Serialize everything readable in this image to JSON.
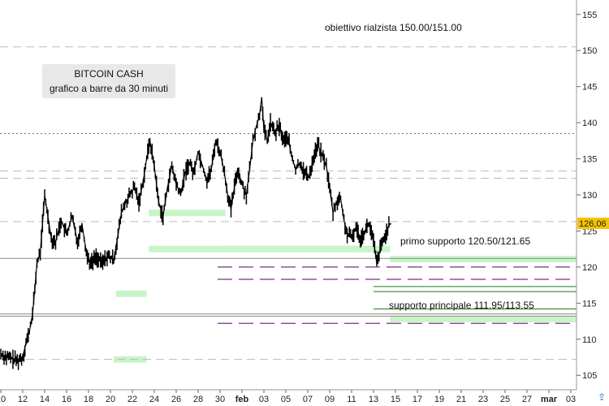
{
  "info_box": {
    "line1": "BITCOIN CASH",
    "line2": "grafico a barre da 30 minuti"
  },
  "annotations": {
    "target": "obiettivo rialzista 150.00/151.00",
    "first_support": "primo supporto 120.50/121.65",
    "main_support": "supporto principale 111.95/113.55"
  },
  "scroll_icon": "up-arrow-icon",
  "chart_data": {
    "type": "line",
    "title": "BITCOIN CASH",
    "subtitle": "grafico a barre da 30 minuti",
    "ylim": [
      103,
      157
    ],
    "y_ticks": [
      105,
      110,
      115,
      120,
      125,
      130,
      135,
      140,
      145,
      150,
      155
    ],
    "x_tick_labels": [
      "10",
      "12",
      "14",
      "16",
      "18",
      "20",
      "22",
      "24",
      "26",
      "28",
      "30",
      "feb",
      "03",
      "05",
      "07",
      "09",
      "11",
      "13",
      "15",
      "17",
      "19",
      "21",
      "23",
      "25",
      "27",
      "mar",
      "03"
    ],
    "x_tick_day_index": [
      0,
      2,
      4,
      6,
      8,
      10,
      12,
      14,
      16,
      18,
      20,
      22,
      24,
      26,
      28,
      30,
      32,
      34,
      36,
      38,
      40,
      42,
      44,
      46,
      48,
      50,
      52
    ],
    "x_tick_bold": [
      "feb",
      "mar"
    ],
    "last_price": "126,06",
    "last_price_value": 126.06,
    "last_price_color": "#f5c400",
    "price_color": "#000000",
    "series": [
      {
        "points": [
          [
            0,
            108.0
          ],
          [
            0.5,
            107.5
          ],
          [
            1,
            107.3
          ],
          [
            1.5,
            107.0
          ],
          [
            2,
            107.5
          ],
          [
            2.3,
            109.5
          ],
          [
            2.6,
            111.0
          ],
          [
            2.9,
            113.5
          ],
          [
            3.1,
            117.0
          ],
          [
            3.3,
            120.5
          ],
          [
            3.6,
            122.0
          ],
          [
            3.8,
            126.0
          ],
          [
            4.0,
            130.0
          ],
          [
            4.3,
            127.0
          ],
          [
            4.6,
            124.0
          ],
          [
            5.0,
            123.5
          ],
          [
            5.5,
            126.5
          ],
          [
            6.0,
            124.5
          ],
          [
            6.5,
            127.0
          ],
          [
            7.0,
            123.5
          ],
          [
            7.4,
            126.0
          ],
          [
            7.8,
            122.0
          ],
          [
            8.2,
            120.5
          ],
          [
            8.7,
            121.5
          ],
          [
            9.2,
            120.5
          ],
          [
            9.7,
            121.5
          ],
          [
            10.3,
            121.0
          ],
          [
            10.7,
            124.5
          ],
          [
            11.0,
            127.5
          ],
          [
            11.4,
            129.0
          ],
          [
            11.8,
            130.0
          ],
          [
            12.2,
            131.0
          ],
          [
            12.6,
            129.0
          ],
          [
            13.0,
            132.0
          ],
          [
            13.3,
            135.0
          ],
          [
            13.6,
            137.5
          ],
          [
            14.0,
            134.0
          ],
          [
            14.4,
            129.0
          ],
          [
            14.8,
            127.0
          ],
          [
            15.2,
            131.0
          ],
          [
            15.6,
            134.0
          ],
          [
            16.0,
            131.5
          ],
          [
            16.4,
            130.0
          ],
          [
            16.8,
            133.0
          ],
          [
            17.2,
            134.5
          ],
          [
            17.6,
            133.0
          ],
          [
            18.0,
            136.0
          ],
          [
            18.4,
            134.0
          ],
          [
            18.8,
            132.0
          ],
          [
            19.2,
            133.5
          ],
          [
            19.6,
            137.5
          ],
          [
            20.0,
            136.0
          ],
          [
            20.4,
            133.0
          ],
          [
            20.7,
            130.0
          ],
          [
            21.0,
            128.0
          ],
          [
            21.3,
            131.0
          ],
          [
            21.6,
            133.5
          ],
          [
            22.0,
            131.5
          ],
          [
            22.4,
            130.0
          ],
          [
            22.7,
            133.5
          ],
          [
            23.0,
            137.5
          ],
          [
            23.3,
            139.5
          ],
          [
            23.6,
            141.0
          ],
          [
            23.8,
            143.5
          ],
          [
            24.0,
            139.0
          ],
          [
            24.3,
            137.5
          ],
          [
            24.6,
            140.0
          ],
          [
            25.0,
            138.5
          ],
          [
            25.4,
            139.5
          ],
          [
            25.8,
            137.5
          ],
          [
            26.2,
            138.0
          ],
          [
            26.5,
            135.5
          ],
          [
            26.9,
            133.5
          ],
          [
            27.3,
            134.5
          ],
          [
            27.7,
            133.0
          ],
          [
            28.1,
            132.5
          ],
          [
            28.5,
            135.0
          ],
          [
            28.9,
            137.0
          ],
          [
            29.3,
            135.5
          ],
          [
            29.7,
            134.0
          ],
          [
            30.0,
            131.0
          ],
          [
            30.3,
            127.5
          ],
          [
            30.6,
            129.0
          ],
          [
            31.0,
            129.5
          ],
          [
            31.3,
            126.5
          ],
          [
            31.6,
            124.5
          ],
          [
            32.0,
            124.0
          ],
          [
            32.4,
            125.5
          ],
          [
            32.8,
            124.0
          ],
          [
            33.2,
            125.0
          ],
          [
            33.6,
            126.0
          ],
          [
            34.0,
            123.5
          ],
          [
            34.3,
            120.5
          ],
          [
            34.6,
            122.5
          ],
          [
            35.0,
            124.0
          ],
          [
            35.3,
            125.5
          ],
          [
            35.6,
            126.06
          ]
        ]
      }
    ],
    "support_zones_green": [
      {
        "day_from": 13.5,
        "day_to": 20.5,
        "y": 127.5
      },
      {
        "day_from": 13.5,
        "day_to": 34.0,
        "y": 122.5
      },
      {
        "day_from": 20.5,
        "day_to": 35.5,
        "y": 122.5
      },
      {
        "day_from": 35.5,
        "day_to": 55.0,
        "y": 121.1
      },
      {
        "day_from": 35.5,
        "day_to": 55.0,
        "y": 112.8
      },
      {
        "day_from": 10.5,
        "day_to": 13.3,
        "y": 116.3
      },
      {
        "day_from": 10.3,
        "day_to": 13.3,
        "y": 107.2
      }
    ],
    "reference_lines": [
      {
        "y": 150.5,
        "style": "dashed",
        "color": "#bbbbbb"
      },
      {
        "y": 138.5,
        "style": "dotted",
        "color": "#4a6fa5"
      },
      {
        "y": 133.3,
        "style": "dashed",
        "color": "#bbbbbb"
      },
      {
        "y": 132.3,
        "style": "dashed",
        "color": "#bbbbbb"
      },
      {
        "y": 126.3,
        "style": "dashed",
        "color": "#bbbbbb"
      },
      {
        "y": 121.2,
        "style": "solid",
        "color": "#888888"
      },
      {
        "y": 113.5,
        "style": "solid",
        "color": "#888888"
      },
      {
        "y": 113.2,
        "style": "solid",
        "color": "#888888"
      },
      {
        "y": 107.2,
        "style": "dashed",
        "color": "#bbbbbb"
      }
    ],
    "purple_lines": [
      120.0,
      118.3,
      112.2
    ],
    "dark_green_lines": [
      117.3,
      116.6,
      114.2
    ]
  }
}
